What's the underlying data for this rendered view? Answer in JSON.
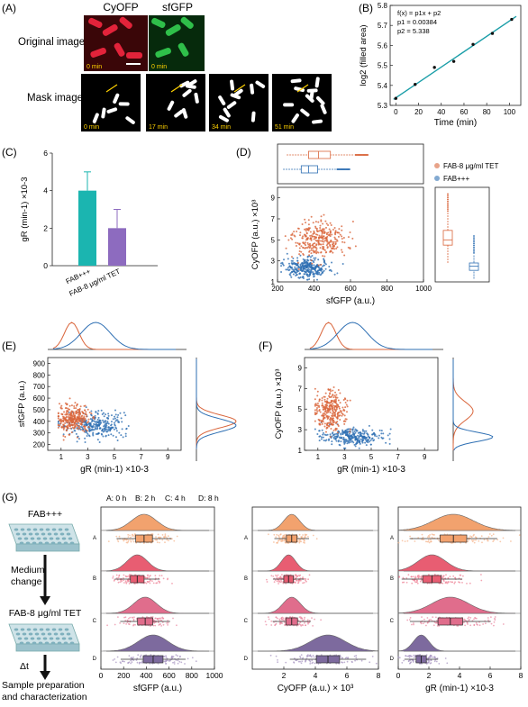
{
  "panels": {
    "A": {
      "label": "(A)",
      "col_cyofp": "CyOFP",
      "col_sfgfp": "sfGFP",
      "row_original": "Original image",
      "row_mask": "Mask image",
      "orig_times": [
        "0 min",
        "0 min"
      ],
      "mask_times": [
        "0 min",
        "17 min",
        "34 min",
        "51 min"
      ]
    },
    "B": {
      "label": "(B)"
    },
    "C": {
      "label": "(C)"
    },
    "D": {
      "label": "(D)"
    },
    "E": {
      "label": "(E)"
    },
    "F": {
      "label": "(F)"
    },
    "G": {
      "label": "(G)",
      "flow": [
        "FAB+++",
        "Medium change",
        "FAB-8 μg/ml TET",
        "Δt",
        "Sample preparation and characterization"
      ],
      "group_legend": [
        "A: 0 h",
        "B: 2 h",
        "C: 4 h",
        "D: 8 h"
      ]
    }
  },
  "colors": {
    "orange": "#d9653b",
    "blue": "#2e6fb3",
    "teal": "#1bb5b0",
    "purple": "#8d6bbf",
    "fitline": "#1a9ea8"
  },
  "chart_data": [
    {
      "id": "B",
      "type": "scatter",
      "fit_text": [
        "f(x) = p1x + p2",
        "p1 = 0.00384",
        "p2 = 5.338"
      ],
      "xlabel": "Time (min)",
      "ylabel": "log2 (filled area)",
      "xlim": [
        -5,
        110
      ],
      "ylim": [
        5.3,
        5.8
      ],
      "xticks": [
        0,
        20,
        40,
        60,
        80,
        100
      ],
      "yticks": [
        5.3,
        5.4,
        5.5,
        5.6,
        5.7,
        5.8
      ],
      "x": [
        0,
        17,
        34,
        51,
        68,
        85,
        102
      ],
      "y": [
        5.335,
        5.405,
        5.49,
        5.52,
        5.605,
        5.66,
        5.73
      ],
      "fit": {
        "p1": 0.00384,
        "p2": 5.338
      }
    },
    {
      "id": "C",
      "type": "bar",
      "categories": [
        "FAB+++",
        "FAB-8 μg/ml TET"
      ],
      "values": [
        4,
        2
      ],
      "errors": [
        1,
        1
      ],
      "ylabel": "gR (min-1) ×10-3",
      "ylim": [
        0,
        6
      ],
      "yticks": [
        0,
        2,
        4,
        6
      ]
    },
    {
      "id": "D",
      "type": "scatter",
      "xlabel": "sfGFP (a.u.)",
      "ylabel": "CyOFP (a.u.) ×10³",
      "xlim": [
        200,
        1000
      ],
      "ylim": [
        1,
        10
      ],
      "xticks": [
        200,
        400,
        600,
        800,
        1000
      ],
      "yticks": [
        1,
        3,
        5,
        7,
        9
      ],
      "series": [
        {
          "name": "FAB-8 μg/ml TET"
        },
        {
          "name": "FAB+++"
        }
      ],
      "box_x": [
        {
          "q1": 370,
          "median": 425,
          "q3": 490,
          "lo": 250,
          "hi": 620
        },
        {
          "q1": 330,
          "median": 370,
          "q3": 420,
          "lo": 230,
          "hi": 520
        }
      ],
      "box_y": [
        {
          "q1": 4.5,
          "median": 5.0,
          "q3": 5.9,
          "lo": 2.8,
          "hi": 7.6
        },
        {
          "q1": 2.1,
          "median": 2.5,
          "q3": 2.8,
          "lo": 1.3,
          "hi": 3.6
        }
      ]
    },
    {
      "id": "E",
      "type": "scatter",
      "xlabel": "gR (min-1) ×10-3",
      "ylabel": "sfGFP (a.u.)",
      "xlim": [
        0,
        10
      ],
      "ylim": [
        150,
        950
      ],
      "xticks": [
        1,
        3,
        5,
        7,
        9
      ],
      "yticks": [
        200,
        300,
        400,
        500,
        600,
        700,
        800,
        900
      ]
    },
    {
      "id": "F",
      "type": "scatter",
      "xlabel": "gR (min-1) ×10-3",
      "ylabel": "CyOFP (a.u.) ×10³",
      "xlim": [
        0,
        10
      ],
      "ylim": [
        1,
        10
      ],
      "xticks": [
        1,
        3,
        5,
        7,
        9
      ],
      "yticks": [
        1,
        3,
        5,
        7,
        9
      ]
    },
    {
      "id": "G1",
      "type": "area",
      "xlabel": "sfGFP (a.u.)",
      "xlim": [
        0,
        1000
      ],
      "xticks": [
        0,
        200,
        400,
        600,
        800,
        1000
      ],
      "groups": [
        "A",
        "B",
        "C",
        "D"
      ],
      "peaks": [
        380,
        320,
        390,
        460
      ],
      "widths": [
        110,
        90,
        100,
        130
      ]
    },
    {
      "id": "G2",
      "type": "area",
      "xlabel": "CyOFP (a.u.) × 10³",
      "xlim": [
        0,
        8
      ],
      "xticks": [
        2,
        4,
        6,
        8
      ],
      "groups": [
        "A",
        "B",
        "C",
        "D"
      ],
      "peaks": [
        2.5,
        2.3,
        2.5,
        4.8
      ],
      "widths": [
        0.5,
        0.45,
        0.55,
        1.1
      ]
    },
    {
      "id": "G3",
      "type": "area",
      "xlabel": "gR (min-1) ×10-3",
      "xlim": [
        0,
        8
      ],
      "xticks": [
        0,
        2,
        4,
        6,
        8
      ],
      "groups": [
        "A",
        "B",
        "C",
        "D"
      ],
      "peaks": [
        3.6,
        2.2,
        3.4,
        1.5
      ],
      "widths": [
        1.3,
        0.9,
        1.2,
        0.5
      ]
    }
  ]
}
